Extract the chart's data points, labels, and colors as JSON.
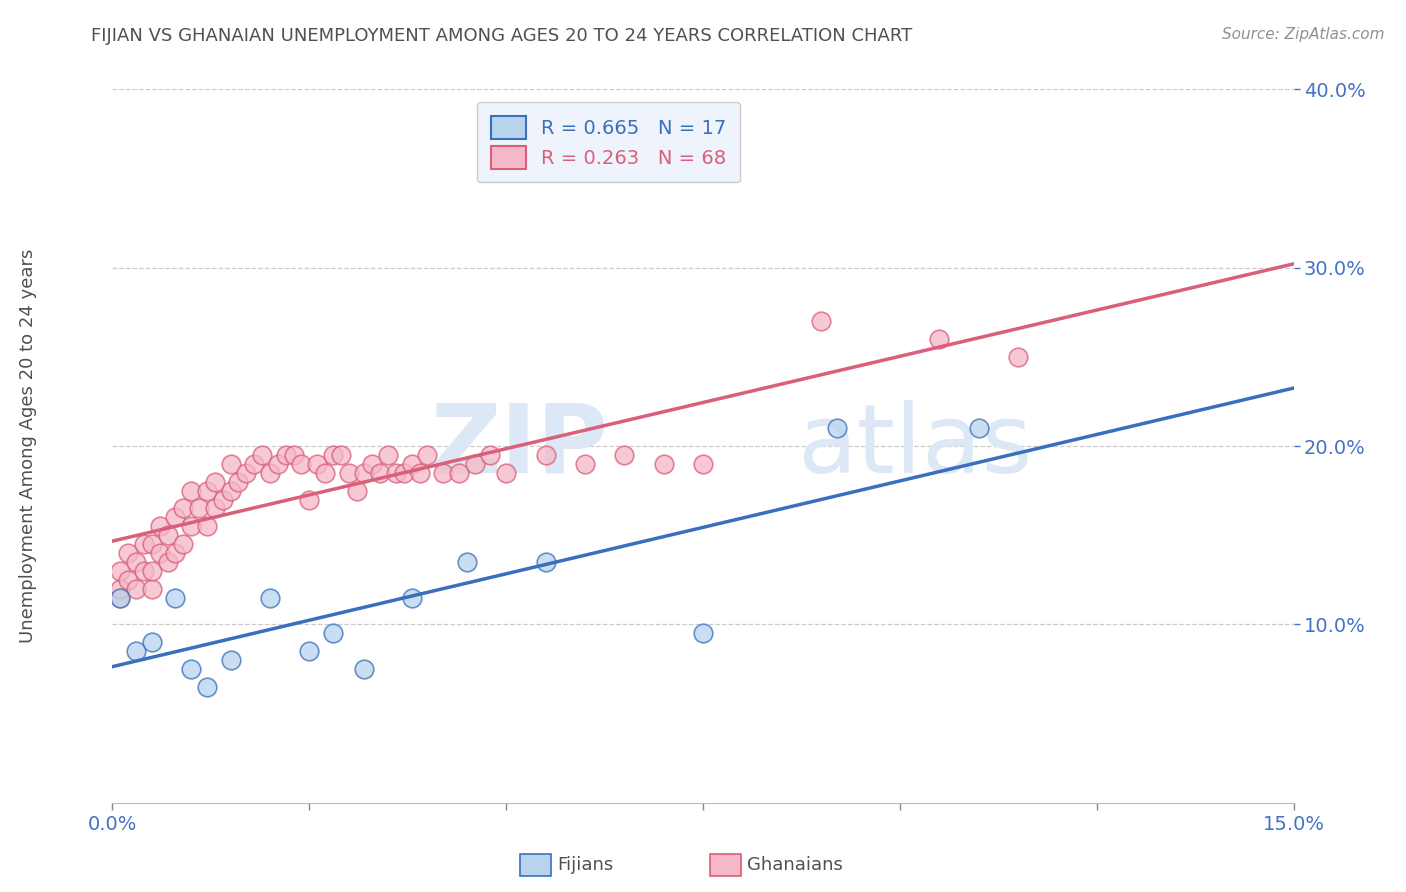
{
  "title": "FIJIAN VS GHANAIAN UNEMPLOYMENT AMONG AGES 20 TO 24 YEARS CORRELATION CHART",
  "source": "Source: ZipAtlas.com",
  "ylabel": "Unemployment Among Ages 20 to 24 years",
  "fijian_R": 0.665,
  "fijian_N": 17,
  "ghanaian_R": 0.263,
  "ghanaian_N": 68,
  "fijian_color": "#b8d4ec",
  "fijian_line_color": "#3a6fbd",
  "ghanaian_color": "#f5b8c8",
  "ghanaian_line_color": "#d95f7a",
  "xlim": [
    0.0,
    0.15
  ],
  "ylim": [
    0.0,
    0.4
  ],
  "xticks": [
    0.0,
    0.025,
    0.05,
    0.075,
    0.1,
    0.125,
    0.15
  ],
  "xtick_labels": [
    "0.0%",
    "",
    "",
    "",
    "",
    "",
    "15.0%"
  ],
  "yticks": [
    0.1,
    0.2,
    0.3,
    0.4
  ],
  "ytick_labels": [
    "10.0%",
    "20.0%",
    "30.0%",
    "40.0%"
  ],
  "watermark_zip": "ZIP",
  "watermark_atlas": "atlas",
  "watermark_color": "#dce8f5",
  "fijian_x": [
    0.001,
    0.003,
    0.005,
    0.008,
    0.01,
    0.012,
    0.015,
    0.02,
    0.025,
    0.028,
    0.032,
    0.038,
    0.045,
    0.055,
    0.075,
    0.092,
    0.11
  ],
  "fijian_y": [
    0.115,
    0.085,
    0.09,
    0.115,
    0.075,
    0.065,
    0.08,
    0.115,
    0.085,
    0.095,
    0.075,
    0.115,
    0.135,
    0.135,
    0.095,
    0.21,
    0.21
  ],
  "ghanaian_x": [
    0.001,
    0.001,
    0.001,
    0.002,
    0.002,
    0.003,
    0.003,
    0.004,
    0.004,
    0.005,
    0.005,
    0.005,
    0.006,
    0.006,
    0.007,
    0.007,
    0.008,
    0.008,
    0.009,
    0.009,
    0.01,
    0.01,
    0.011,
    0.012,
    0.012,
    0.013,
    0.013,
    0.014,
    0.015,
    0.015,
    0.016,
    0.017,
    0.018,
    0.019,
    0.02,
    0.021,
    0.022,
    0.023,
    0.024,
    0.025,
    0.026,
    0.027,
    0.028,
    0.029,
    0.03,
    0.031,
    0.032,
    0.033,
    0.034,
    0.035,
    0.036,
    0.037,
    0.038,
    0.039,
    0.04,
    0.042,
    0.044,
    0.046,
    0.048,
    0.05,
    0.055,
    0.06,
    0.065,
    0.07,
    0.075,
    0.09,
    0.105,
    0.115
  ],
  "ghanaian_y": [
    0.115,
    0.12,
    0.13,
    0.125,
    0.14,
    0.12,
    0.135,
    0.13,
    0.145,
    0.12,
    0.13,
    0.145,
    0.14,
    0.155,
    0.135,
    0.15,
    0.14,
    0.16,
    0.145,
    0.165,
    0.155,
    0.175,
    0.165,
    0.155,
    0.175,
    0.165,
    0.18,
    0.17,
    0.175,
    0.19,
    0.18,
    0.185,
    0.19,
    0.195,
    0.185,
    0.19,
    0.195,
    0.195,
    0.19,
    0.17,
    0.19,
    0.185,
    0.195,
    0.195,
    0.185,
    0.175,
    0.185,
    0.19,
    0.185,
    0.195,
    0.185,
    0.185,
    0.19,
    0.185,
    0.195,
    0.185,
    0.185,
    0.19,
    0.195,
    0.185,
    0.195,
    0.19,
    0.195,
    0.19,
    0.19,
    0.27,
    0.26,
    0.25
  ],
  "legend_box_color": "#eef3fc",
  "right_yaxis_color": "#4472c4",
  "bottom_xaxis_color": "#4472c4",
  "title_color": "#505050",
  "source_color": "#909090",
  "bg_color": "#ffffff",
  "grid_color": "#cccccc"
}
